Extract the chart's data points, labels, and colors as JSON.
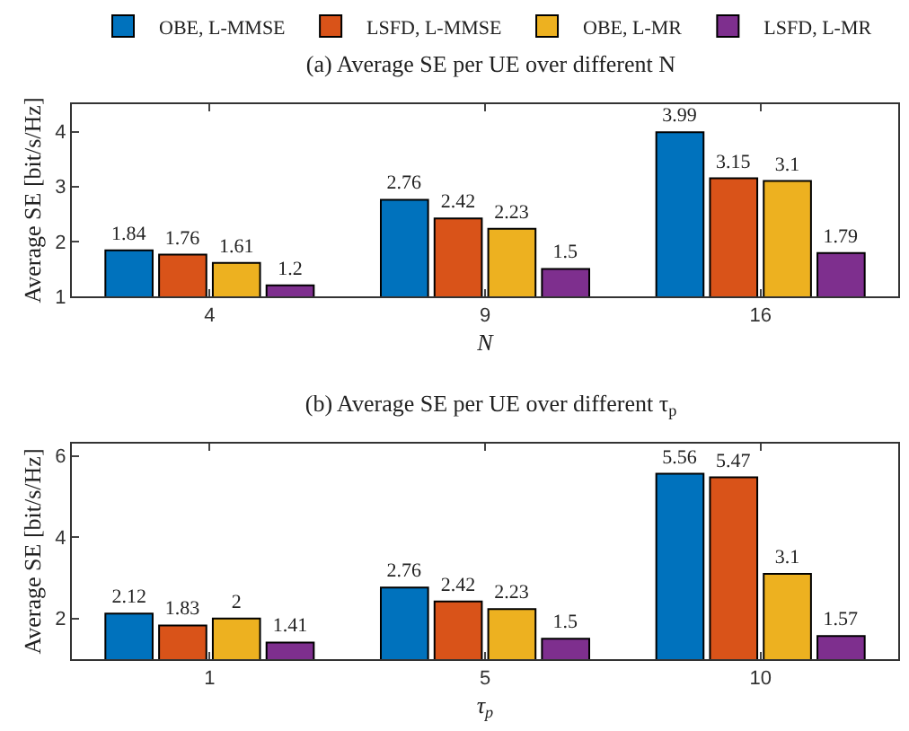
{
  "chart_data": [
    {
      "type": "bar",
      "title": "(a) Average SE per UE over different N",
      "xlabel": "N",
      "ylabel": "Average SE [bit/s/Hz]",
      "categories": [
        "4",
        "9",
        "16"
      ],
      "ylim": [
        1,
        4.5
      ],
      "yticks": [
        1,
        2,
        3,
        4
      ],
      "data_labels": true,
      "legend": "top",
      "grid": false,
      "series": [
        {
          "name": "OBE, L-MMSE",
          "color": "#0072bd",
          "values": [
            1.84,
            2.76,
            3.99
          ]
        },
        {
          "name": "LSFD, L-MMSE",
          "color": "#d95319",
          "values": [
            1.76,
            2.42,
            3.15
          ]
        },
        {
          "name": "OBE, L-MR",
          "color": "#edb120",
          "values": [
            1.61,
            2.23,
            3.1
          ]
        },
        {
          "name": "LSFD, L-MR",
          "color": "#7e2f8e",
          "values": [
            1.2,
            1.5,
            1.79
          ]
        }
      ]
    },
    {
      "type": "bar",
      "title": "(b) Average SE per UE over different τ$_{p}$",
      "xlabel": "τ$_{p}$",
      "ylabel": "Average SE [bit/s/Hz]",
      "categories": [
        "1",
        "5",
        "10"
      ],
      "ylim": [
        1,
        6.3
      ],
      "yticks": [
        2,
        4,
        6
      ],
      "data_labels": true,
      "grid": false,
      "series": [
        {
          "color": "#0072bd",
          "values": [
            2.12,
            2.76,
            5.56
          ]
        },
        {
          "color": "#d95319",
          "values": [
            1.83,
            2.42,
            5.47
          ]
        },
        {
          "color": "#edb120",
          "values": [
            2,
            2.23,
            3.1
          ]
        },
        {
          "color": "#7e2f8e",
          "values": [
            1.41,
            1.5,
            1.57
          ]
        }
      ]
    }
  ]
}
